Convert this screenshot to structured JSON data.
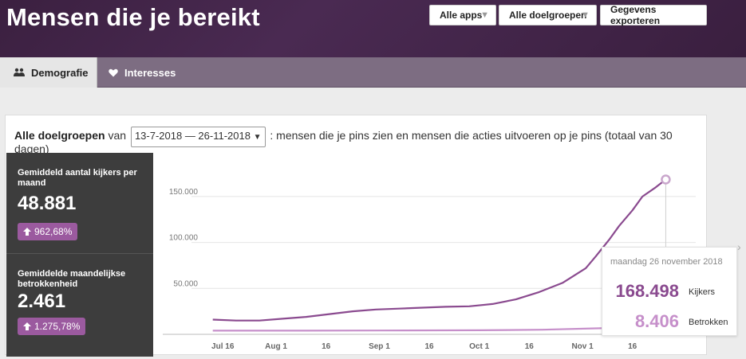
{
  "header": {
    "title": "Mensen die je bereikt",
    "buttons": {
      "apps": "Alle apps",
      "audiences": "Alle doelgroepen",
      "export": "Gegevens exporteren"
    }
  },
  "tabs": [
    {
      "label": "Demografie",
      "icon": "people-icon",
      "active": true
    },
    {
      "label": "Interesses",
      "icon": "heart-icon",
      "active": false
    }
  ],
  "summary": {
    "audience": "Alle doelgroepen",
    "from_word": "van",
    "date_range": "13-7-2018 — 26-11-2018",
    "text": ": mensen die je pins zien en mensen die acties uitvoeren op je pins (totaal van 30",
    "text_line2": "dagen)"
  },
  "stats": [
    {
      "label": "Gemiddeld aantal kijkers per maand",
      "value": "48.881",
      "change": "962,68%"
    },
    {
      "label": "Gemiddelde maandelijkse betrokkenheid",
      "value": "2.461",
      "change": "1.275,78%"
    }
  ],
  "tooltip": {
    "date": "maandag 26 november 2018",
    "kijkers_value": "168.498",
    "kijkers_label": "Kijkers",
    "betrokken_value": "8.406",
    "betrokken_label": "Betrokken"
  },
  "colors": {
    "kijkers": "#8a4a8f",
    "betrokken": "#c68fca",
    "accent": "#9b5a9f"
  },
  "chart_data": {
    "type": "line",
    "x_tick_labels": [
      "Jul 16",
      "Aug 1",
      "16",
      "Sep 1",
      "16",
      "Oct 1",
      "16",
      "Nov 1",
      "16"
    ],
    "y_tick_labels": [
      "50.000",
      "100.000",
      "150.000"
    ],
    "ylim": [
      0,
      175000
    ],
    "grid": true,
    "series": [
      {
        "name": "Kijkers",
        "x": [
          "2018-07-13",
          "2018-07-20",
          "2018-07-27",
          "2018-08-03",
          "2018-08-10",
          "2018-08-17",
          "2018-08-24",
          "2018-08-31",
          "2018-09-07",
          "2018-09-14",
          "2018-09-21",
          "2018-09-28",
          "2018-10-05",
          "2018-10-12",
          "2018-10-19",
          "2018-10-26",
          "2018-11-02",
          "2018-11-05",
          "2018-11-09",
          "2018-11-12",
          "2018-11-16",
          "2018-11-19",
          "2018-11-23",
          "2018-11-26"
        ],
        "values": [
          16000,
          15000,
          15000,
          17000,
          19000,
          22000,
          25000,
          27000,
          28000,
          29000,
          30000,
          30500,
          33000,
          38000,
          46000,
          56000,
          72000,
          85000,
          103000,
          118000,
          135000,
          150000,
          160000,
          168498
        ]
      },
      {
        "name": "Betrokken",
        "x": [
          "2018-07-13",
          "2018-08-01",
          "2018-09-01",
          "2018-10-01",
          "2018-10-20",
          "2018-11-05",
          "2018-11-26"
        ],
        "values": [
          4000,
          4000,
          4200,
          4400,
          5000,
          6500,
          8406
        ]
      }
    ]
  }
}
